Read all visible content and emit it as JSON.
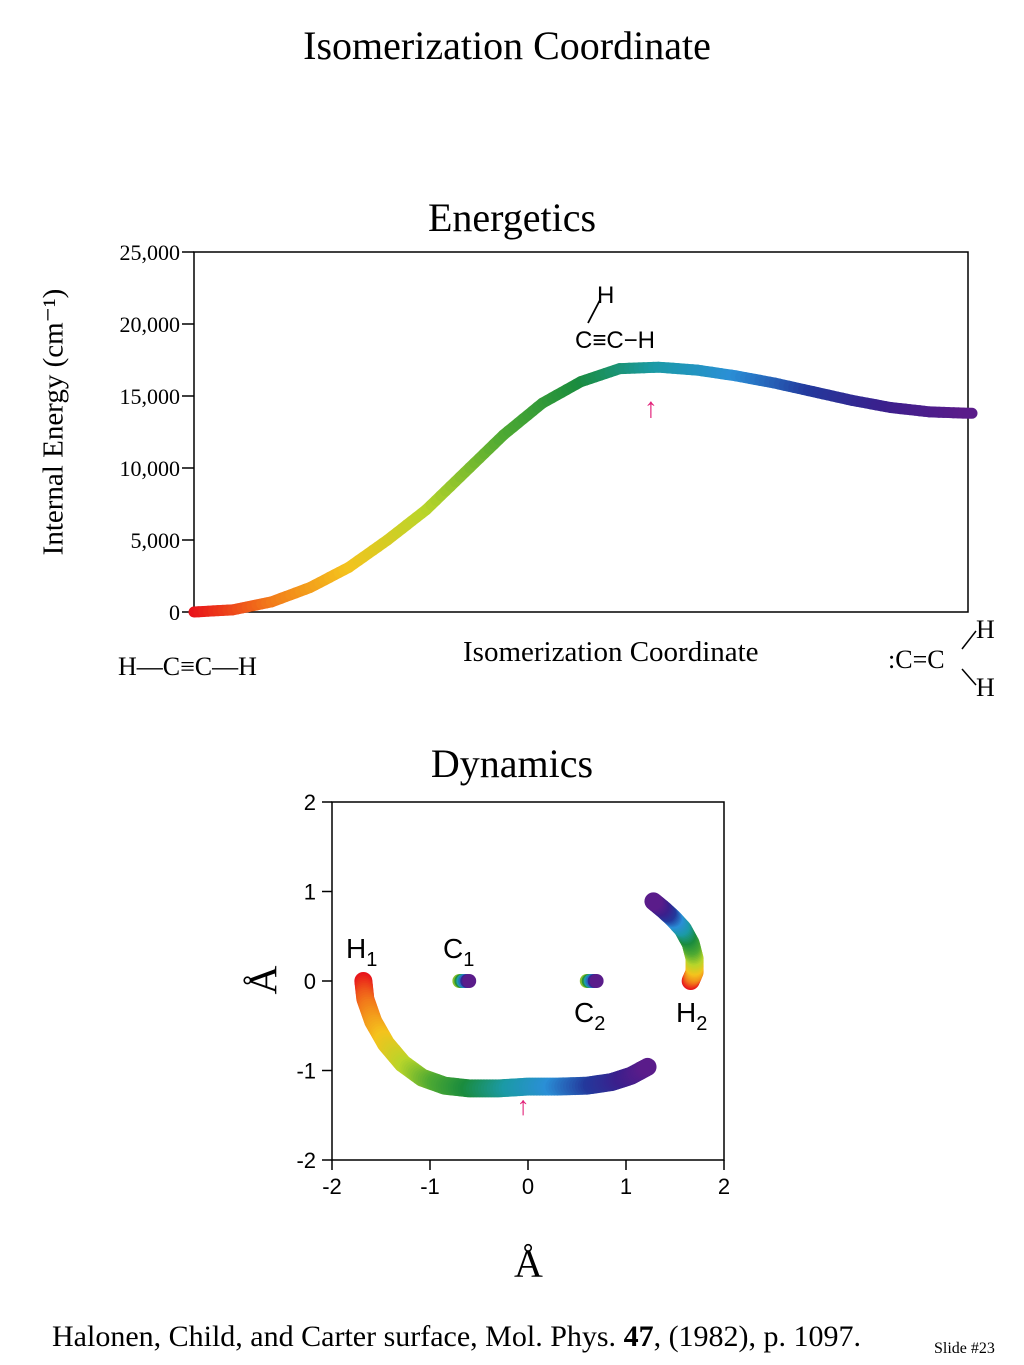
{
  "slide": {
    "title": "Isomerization Coordinate",
    "citation_pre": "Halonen, Child, and Carter surface, Mol. Phys. ",
    "citation_bold": "47",
    "citation_post": ", (1982), p. 1097.",
    "slide_number": "Slide #23"
  },
  "energetics": {
    "title": "Energetics",
    "left_molecule": "H—C≡C—H",
    "saddle_molecule_top": "H",
    "saddle_molecule_bottom": "C≡C−H",
    "right_molecule_c": ":C=C",
    "right_molecule_h_top": "H",
    "right_molecule_h_bottom": "H"
  },
  "dynamics": {
    "title": "Dynamics",
    "labels": {
      "H1": "H",
      "H1_sub": "1",
      "C1": "C",
      "C1_sub": "1",
      "C2": "C",
      "C2_sub": "2",
      "H2": "H",
      "H2_sub": "2"
    }
  },
  "chart_data": [
    {
      "type": "line",
      "title": "Energetics",
      "xlabel": "Isomerization Coordinate",
      "ylabel": "Internal Energy (cm⁻¹)",
      "ylim": [
        0,
        25000
      ],
      "yticks": [
        "0",
        "5,000",
        "10,000",
        "15,000",
        "20,000",
        "25,000"
      ],
      "xticks": [],
      "grid": false,
      "series": [
        {
          "x": [
            0,
            0.05,
            0.1,
            0.15,
            0.2,
            0.25,
            0.3,
            0.35,
            0.4,
            0.45,
            0.5,
            0.55,
            0.6,
            0.65,
            0.7,
            0.75,
            0.8,
            0.85,
            0.9,
            0.95,
            1.0
          ],
          "y": [
            0,
            150,
            700,
            1700,
            3100,
            5000,
            7100,
            9700,
            12300,
            14500,
            16000,
            16900,
            17000,
            16800,
            16400,
            15900,
            15300,
            14700,
            14200,
            13900,
            13800
          ],
          "color_gradient": [
            "#e8141a",
            "#f27a1a",
            "#f4c31d",
            "#b9d52a",
            "#4faa32",
            "#1a8c3e",
            "#1b9aa6",
            "#2a8fd6",
            "#23399c",
            "#3b1f8c",
            "#5a1c8a"
          ]
        }
      ],
      "annotations": [
        {
          "text": "↑",
          "x": 0.58,
          "y": 14800,
          "color": "#e2237a"
        }
      ]
    },
    {
      "type": "scatter",
      "title": "Dynamics",
      "xlabel": "Å",
      "ylabel": "Å",
      "xlim": [
        -2,
        2
      ],
      "ylim": [
        -2,
        2
      ],
      "xticks": [
        "-2",
        "-1",
        "0",
        "1",
        "2"
      ],
      "yticks": [
        "-2",
        "-1",
        "0",
        "1",
        "2"
      ],
      "grid": false,
      "series": [
        {
          "name": "H1",
          "x": [
            -1.68,
            -1.66,
            -1.58,
            -1.45,
            -1.28,
            -1.08,
            -0.85,
            -0.6,
            -0.3,
            0.0,
            0.3,
            0.6,
            0.85,
            1.05,
            1.22
          ],
          "y": [
            0.0,
            -0.2,
            -0.45,
            -0.7,
            -0.92,
            -1.08,
            -1.17,
            -1.2,
            -1.2,
            -1.18,
            -1.18,
            -1.17,
            -1.13,
            -1.06,
            -0.96
          ]
        },
        {
          "name": "H2",
          "x": [
            1.66,
            1.7,
            1.7,
            1.66,
            1.58,
            1.48,
            1.38,
            1.28
          ],
          "y": [
            0.0,
            0.1,
            0.25,
            0.42,
            0.58,
            0.7,
            0.8,
            0.89
          ]
        },
        {
          "name": "C1",
          "x": [
            -0.7,
            -0.68,
            -0.66,
            -0.64,
            -0.62,
            -0.6
          ],
          "y": [
            0,
            0,
            0,
            0,
            0,
            0
          ]
        },
        {
          "name": "C2",
          "x": [
            0.6,
            0.62,
            0.64,
            0.66,
            0.68,
            0.7
          ],
          "y": [
            0,
            0,
            0,
            0,
            0,
            0
          ]
        }
      ],
      "color_gradient": [
        "#e8141a",
        "#f27a1a",
        "#f4c31d",
        "#b9d52a",
        "#4faa32",
        "#1a8c3e",
        "#1b9aa6",
        "#2a8fd6",
        "#23399c",
        "#3b1f8c",
        "#5a1c8a"
      ],
      "annotations": [
        {
          "text": "↑",
          "x": -0.05,
          "y": -1.38,
          "color": "#e2237a"
        }
      ]
    }
  ]
}
